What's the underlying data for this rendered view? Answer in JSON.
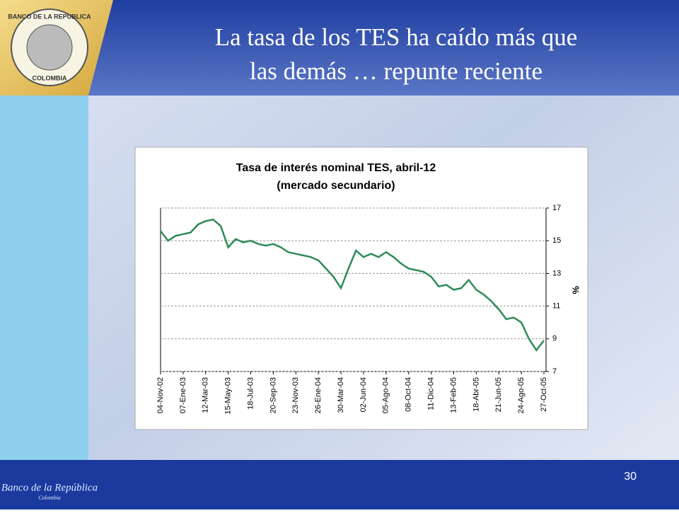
{
  "slide": {
    "title_line1": "La tasa de los TES ha caído más que",
    "title_line2": "las demás … repunte reciente",
    "page_number": "30",
    "logo_top": "BANCO DE LA REPUBLICA",
    "logo_bottom": "COLOMBIA",
    "footer_logo": "Banco de la República",
    "footer_logo_sub": "Colombia"
  },
  "chart_data": {
    "type": "line",
    "title_line1": "Tasa de interés nominal TES,  abril-12",
    "title_line2": "(mercado secundario)",
    "y_label": "%",
    "categories": [
      "04-Nov-02",
      null,
      null,
      "07-Ene-03",
      null,
      null,
      "12-Mar-03",
      null,
      null,
      "15-May-03",
      null,
      null,
      "18-Jul-03",
      null,
      null,
      "20-Sep-03",
      null,
      null,
      "23-Nov-03",
      null,
      null,
      "26-Ene-04",
      null,
      null,
      "30-Mar-04",
      null,
      null,
      "02-Jun-04",
      null,
      null,
      "05-Ago-04",
      null,
      null,
      "08-Oct-04",
      null,
      null,
      "11-Dic-04",
      null,
      null,
      "13-Feb-05",
      null,
      null,
      "18-Abr-05",
      null,
      null,
      "21-Jun-05",
      null,
      null,
      "24-Ago-05",
      null,
      null,
      "27-Oct-05"
    ],
    "series": [
      {
        "name": "TES",
        "color": "#2e8b57",
        "values": [
          15.6,
          15.0,
          15.3,
          15.4,
          15.5,
          16.0,
          16.2,
          16.3,
          15.9,
          14.6,
          15.1,
          14.9,
          15.0,
          14.8,
          14.7,
          14.8,
          14.6,
          14.3,
          14.2,
          14.1,
          14.0,
          13.8,
          13.3,
          12.8,
          12.1,
          13.3,
          14.4,
          14.0,
          14.2,
          14.0,
          14.3,
          14.0,
          13.6,
          13.3,
          13.2,
          13.1,
          12.8,
          12.2,
          12.3,
          12.0,
          12.1,
          12.6,
          12.0,
          11.7,
          11.3,
          10.8,
          10.2,
          10.3,
          10.0,
          9.0,
          8.3,
          8.9
        ]
      }
    ],
    "ylim": [
      7,
      17
    ],
    "yticks": [
      7,
      9,
      11,
      13,
      15,
      17
    ],
    "grid": true
  }
}
